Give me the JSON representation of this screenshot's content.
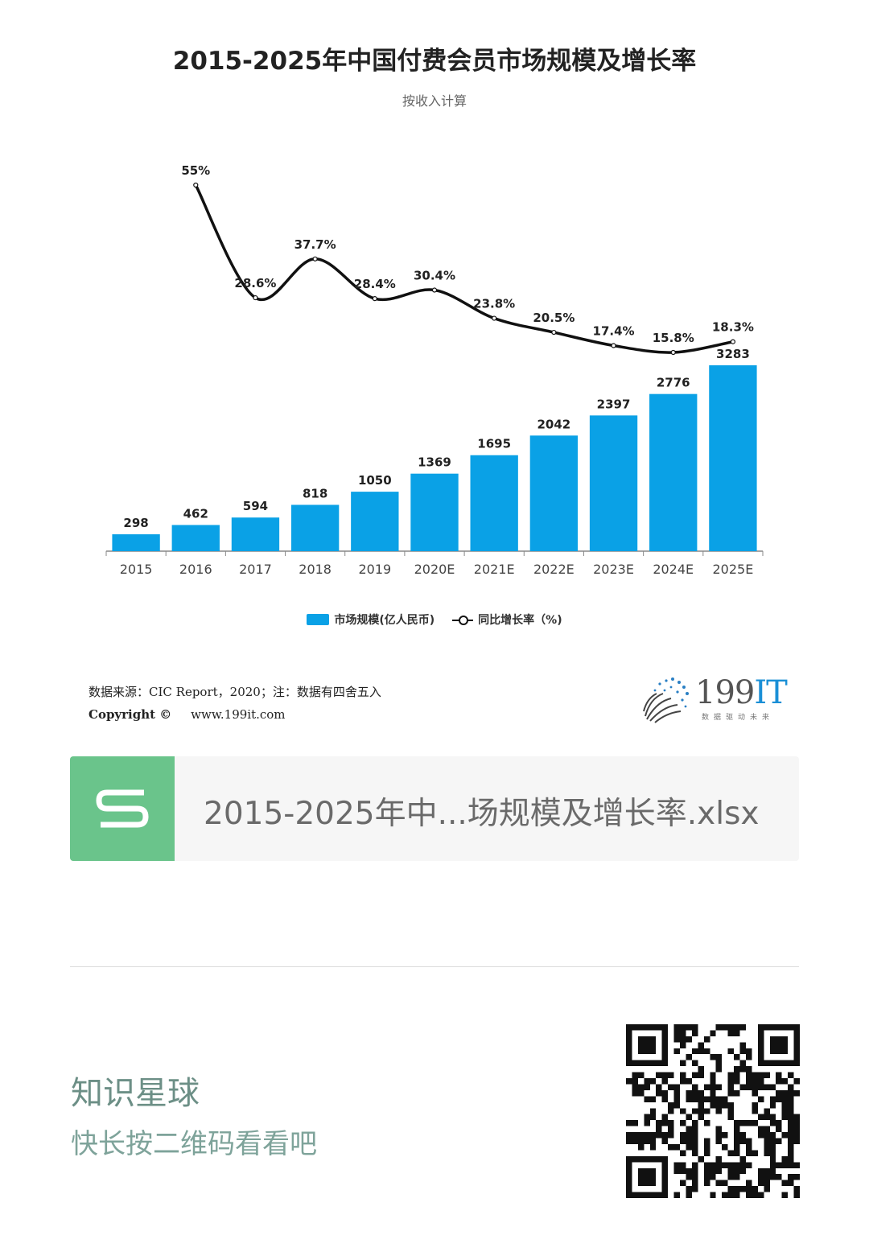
{
  "chart": {
    "title": "2015-2025年中国付费会员市场规模及增长率",
    "subtitle": "按收入计算"
  },
  "chart_data": {
    "type": "bar",
    "categories": [
      "2015",
      "2016",
      "2017",
      "2018",
      "2019",
      "2020E",
      "2021E",
      "2022E",
      "2023E",
      "2024E",
      "2025E"
    ],
    "series": [
      {
        "name": "市场规模(亿人民币)",
        "type": "bar",
        "values": [
          298,
          462,
          594,
          818,
          1050,
          1369,
          1695,
          2042,
          2397,
          2776,
          3283
        ],
        "color": "#0aa1e6"
      },
      {
        "name": "同比增长率（%)",
        "type": "line",
        "values": [
          null,
          55,
          28.6,
          37.7,
          28.4,
          30.4,
          23.8,
          20.5,
          17.4,
          15.8,
          18.3
        ],
        "labels": [
          "",
          "55%",
          "28.6%",
          "37.7%",
          "28.4%",
          "30.4%",
          "23.8%",
          "20.5%",
          "17.4%",
          "15.8%",
          "18.3%"
        ],
        "color": "#111111"
      }
    ]
  },
  "legend": {
    "bar_label": "市场规模(亿人民币)",
    "line_label": "同比增长率（%)"
  },
  "source": {
    "line1": "数据来源：CIC Report，2020；注：数据有四舍五入",
    "copyright_label": "Copyright ©",
    "site": "www.199it.com"
  },
  "brand": {
    "name_digits": "199",
    "name_letters": "IT",
    "tagline": "数据驱动未来"
  },
  "file": {
    "icon": "spreadsheet-s-icon",
    "name": "2015-2025年中...场规模及增长率.xlsx"
  },
  "promo": {
    "title": "知识星球",
    "subtitle": "快长按二维码看看吧"
  },
  "colors": {
    "bar": "#0aa1e6",
    "file_icon": "#6ac48b",
    "promo_text": "#6c8f86"
  }
}
